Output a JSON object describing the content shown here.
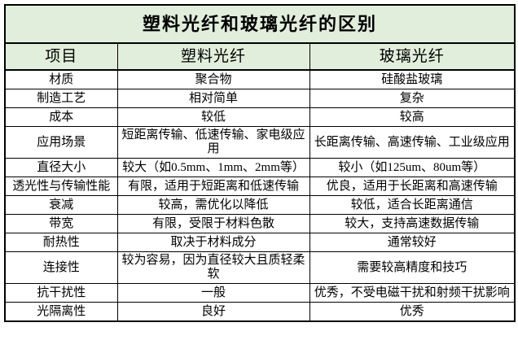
{
  "table": {
    "title": "塑料光纤和玻璃光纤的区别",
    "columns": [
      "项目",
      "塑料光纤",
      "玻璃光纤"
    ],
    "rows": [
      {
        "label": "材质",
        "plastic": "聚合物",
        "glass": "硅酸盐玻璃"
      },
      {
        "label": "制造工艺",
        "plastic": "相对简单",
        "glass": "复杂"
      },
      {
        "label": "成本",
        "plastic": "较低",
        "glass": "较高"
      },
      {
        "label": "应用场景",
        "plastic": "短距离传输、低速传输、家电级应用",
        "glass": "长距离传输、高速传输、工业级应用"
      },
      {
        "label": "直径大小",
        "plastic": "较大（如0.5mm、1mm、2mm等）",
        "glass": "较小（如125um、80um等）"
      },
      {
        "label": "透光性与传输性能",
        "plastic": "有限，适用于短距离和低速传输",
        "glass": "优良，适用于长距离和高速传输"
      },
      {
        "label": "衰减",
        "plastic": "较高，需优化以降低",
        "glass": "较低，适合长距离通信"
      },
      {
        "label": "带宽",
        "plastic": "有限，受限于材料色散",
        "glass": "较大，支持高速数据传输"
      },
      {
        "label": "耐热性",
        "plastic": "取决于材料成分",
        "glass": "通常较好"
      },
      {
        "label": "连接性",
        "plastic": "较为容易，因为直径较大且质轻柔软",
        "glass": "需要较高精度和技巧"
      },
      {
        "label": "抗干扰性",
        "plastic": "一般",
        "glass": "优秀，不受电磁干扰和射频干扰影响"
      },
      {
        "label": "光隔离性",
        "plastic": "良好",
        "glass": "优秀"
      }
    ]
  },
  "colors": {
    "header_bg": "#e1eedb",
    "row_bg": "#ffffff",
    "border": "#000000",
    "text": "#000000"
  }
}
